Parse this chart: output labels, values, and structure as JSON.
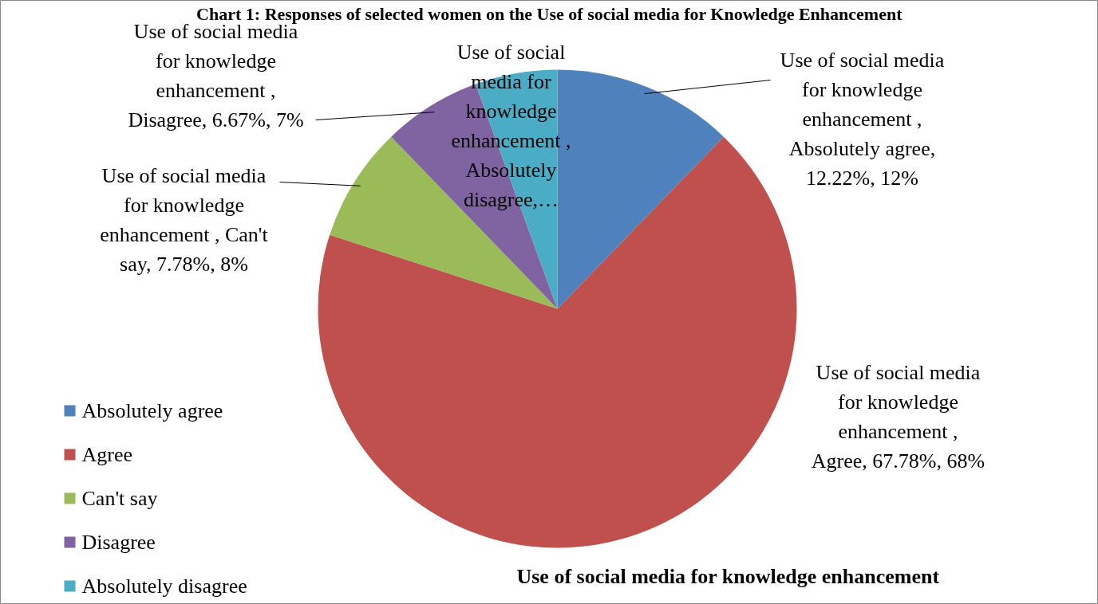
{
  "chart_data": {
    "type": "pie",
    "title": "Chart 1: Responses of selected women on the Use of social media for Knowledge Enhancement",
    "subtitle": "Use of social media for knowledge enhancement",
    "categories": [
      "Absolutely agree",
      "Agree",
      "Can't say",
      "Disagree",
      "Absolutely disagree"
    ],
    "values": [
      12.22,
      67.78,
      7.78,
      6.67,
      5.55
    ],
    "colors": [
      "#4f81bd",
      "#c0504d",
      "#9bbb59",
      "#8064a2",
      "#4bacc6"
    ],
    "value_labels": [
      "Use of social media for knowledge enhancement , Absolutely agree, 12.22%, 12%",
      "Use of social media for knowledge enhancement , Agree, 67.78%, 68%",
      "Use of social media for knowledge enhancement , Can't say, 7.78%, 8%",
      "Use of social media for knowledge enhancement , Disagree, 6.67%, 7%",
      "Use of social media for knowledge enhancement , Absolutely disagree,…"
    ],
    "legend": "bottom left"
  }
}
